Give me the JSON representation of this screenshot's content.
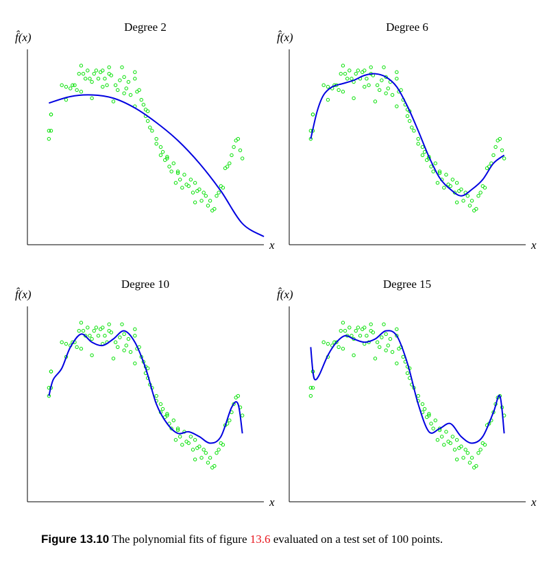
{
  "chart_data": [
    {
      "type": "scatter",
      "title": "Degree 2",
      "ylabel": "f̂(x)",
      "xlabel": "x",
      "xlim": [
        0,
        1.1
      ],
      "ylim": [
        -0.1,
        1.1
      ],
      "series": [
        {
          "kind": "points",
          "color": "#00e000",
          "x": [
            0.1,
            0.1,
            0.11,
            0.11,
            0.11,
            0.16,
            0.18,
            0.18,
            0.2,
            0.21,
            0.22,
            0.23,
            0.24,
            0.25,
            0.26,
            0.27,
            0.28,
            0.29,
            0.3,
            0.31,
            0.32,
            0.33,
            0.34,
            0.35,
            0.36,
            0.37,
            0.38,
            0.38,
            0.39,
            0.41,
            0.42,
            0.43,
            0.44,
            0.45,
            0.46,
            0.47,
            0.48,
            0.5,
            0.5,
            0.51,
            0.52,
            0.53,
            0.54,
            0.55,
            0.56,
            0.56,
            0.57,
            0.58,
            0.6,
            0.62,
            0.62,
            0.63,
            0.64,
            0.65,
            0.66,
            0.67,
            0.68,
            0.69,
            0.7,
            0.71,
            0.72,
            0.73,
            0.74,
            0.75,
            0.76,
            0.77,
            0.78,
            0.79,
            0.8,
            0.81,
            0.82,
            0.83,
            0.84,
            0.85,
            0.86,
            0.87,
            0.88,
            0.89,
            0.9,
            0.91,
            0.92,
            0.93,
            0.94,
            0.95,
            0.96,
            0.97,
            0.98,
            0.99,
            1.0,
            0.25,
            0.3,
            0.35,
            0.4,
            0.45,
            0.5,
            0.55,
            0.6,
            0.65,
            0.7,
            0.78
          ],
          "y": [
            0.6,
            0.55,
            0.7,
            0.7,
            0.6,
            0.88,
            0.87,
            0.79,
            0.86,
            0.88,
            0.88,
            0.85,
            0.95,
            1.0,
            0.95,
            0.92,
            0.97,
            0.92,
            0.9,
            0.95,
            0.97,
            0.92,
            0.96,
            0.97,
            0.92,
            0.88,
            0.99,
            0.95,
            0.94,
            0.88,
            0.85,
            0.91,
            0.99,
            0.93,
            0.86,
            0.9,
            0.82,
            0.92,
            0.96,
            0.84,
            0.85,
            0.79,
            0.76,
            0.73,
            0.72,
            0.66,
            0.62,
            0.6,
            0.55,
            0.45,
            0.5,
            0.47,
            0.42,
            0.44,
            0.38,
            0.35,
            0.4,
            0.28,
            0.35,
            0.3,
            0.25,
            0.33,
            0.27,
            0.26,
            0.3,
            0.22,
            0.28,
            0.23,
            0.24,
            0.17,
            0.22,
            0.2,
            0.14,
            0.17,
            0.11,
            0.12,
            0.2,
            0.22,
            0.26,
            0.25,
            0.37,
            0.38,
            0.4,
            0.45,
            0.5,
            0.54,
            0.55,
            0.48,
            0.43,
            0.84,
            0.8,
            0.87,
            0.78,
            0.83,
            0.75,
            0.69,
            0.52,
            0.43,
            0.34,
            0.16
          ]
        },
        {
          "kind": "curve",
          "color": "#0000e0",
          "x": [
            0.1,
            0.2,
            0.3,
            0.4,
            0.5,
            0.6,
            0.7,
            0.8,
            0.9,
            1.0,
            1.1
          ],
          "y": [
            0.77,
            0.81,
            0.82,
            0.8,
            0.74,
            0.65,
            0.54,
            0.4,
            0.23,
            0.03,
            -0.05
          ]
        }
      ]
    },
    {
      "type": "scatter",
      "title": "Degree 6",
      "ylabel": "f̂(x)",
      "xlabel": "x",
      "xlim": [
        0,
        1.1
      ],
      "ylim": [
        -0.1,
        1.1
      ],
      "series": [
        {
          "kind": "points",
          "color": "#00e000",
          "same_as_panel": 0
        },
        {
          "kind": "curve",
          "color": "#0000e0",
          "x": [
            0.1,
            0.13,
            0.16,
            0.2,
            0.25,
            0.3,
            0.35,
            0.4,
            0.45,
            0.5,
            0.55,
            0.6,
            0.65,
            0.7,
            0.75,
            0.8,
            0.85,
            0.9,
            0.95,
            1.0
          ],
          "y": [
            0.55,
            0.72,
            0.82,
            0.87,
            0.89,
            0.91,
            0.94,
            0.95,
            0.93,
            0.87,
            0.75,
            0.6,
            0.44,
            0.31,
            0.24,
            0.2,
            0.24,
            0.3,
            0.4,
            0.45
          ]
        }
      ]
    },
    {
      "type": "scatter",
      "title": "Degree 10",
      "ylabel": "f̂(x)",
      "xlabel": "x",
      "xlim": [
        0,
        1.1
      ],
      "ylim": [
        -0.1,
        1.1
      ],
      "series": [
        {
          "kind": "points",
          "color": "#00e000",
          "same_as_panel": 0
        },
        {
          "kind": "curve",
          "color": "#0000e0",
          "x": [
            0.1,
            0.12,
            0.16,
            0.2,
            0.25,
            0.3,
            0.35,
            0.4,
            0.45,
            0.5,
            0.55,
            0.6,
            0.65,
            0.7,
            0.75,
            0.8,
            0.85,
            0.9,
            0.95,
            0.98,
            1.0
          ],
          "y": [
            0.55,
            0.65,
            0.72,
            0.85,
            0.93,
            0.88,
            0.86,
            0.9,
            0.95,
            0.88,
            0.72,
            0.5,
            0.38,
            0.32,
            0.33,
            0.3,
            0.26,
            0.3,
            0.48,
            0.5,
            0.32
          ]
        }
      ]
    },
    {
      "type": "scatter",
      "title": "Degree 15",
      "ylabel": "f̂(x)",
      "xlabel": "x",
      "xlim": [
        0,
        1.1
      ],
      "ylim": [
        -0.1,
        1.1
      ],
      "series": [
        {
          "kind": "points",
          "color": "#00e000",
          "same_as_panel": 0
        },
        {
          "kind": "curve",
          "color": "#0000e0",
          "x": [
            0.1,
            0.11,
            0.12,
            0.14,
            0.18,
            0.22,
            0.26,
            0.3,
            0.35,
            0.4,
            0.45,
            0.5,
            0.55,
            0.6,
            0.65,
            0.7,
            0.75,
            0.8,
            0.85,
            0.9,
            0.95,
            0.98,
            1.0
          ],
          "y": [
            0.85,
            0.7,
            0.65,
            0.68,
            0.8,
            0.88,
            0.92,
            0.9,
            0.88,
            0.9,
            0.95,
            0.92,
            0.75,
            0.5,
            0.33,
            0.35,
            0.38,
            0.3,
            0.26,
            0.3,
            0.45,
            0.55,
            0.32
          ]
        }
      ]
    }
  ],
  "caption": {
    "label": "Figure 13.10",
    "text_before": " The polynomial fits of figure ",
    "ref": "13.6",
    "text_after": " evaluated on a test set of 100 points."
  }
}
